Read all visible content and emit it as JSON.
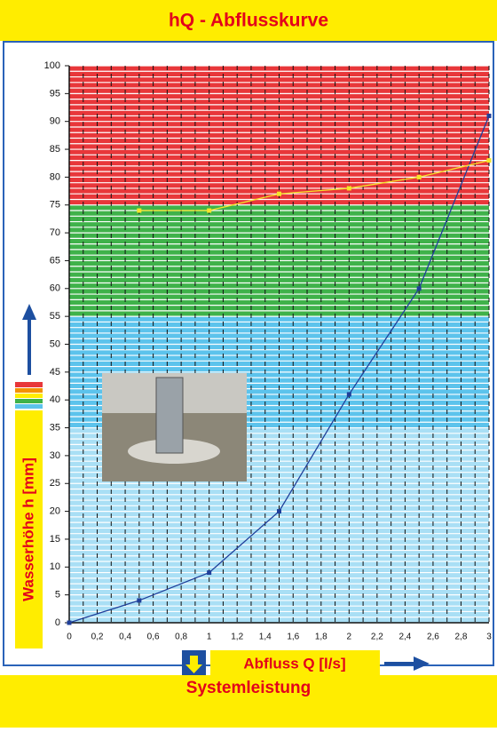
{
  "chart_data": {
    "type": "line",
    "title": "hQ - Abflusskurve",
    "caption": "Systemleistung",
    "x_label": "Abfluss Q [l/s]",
    "y_label": "Wasserhöhe h [mm]",
    "xlim": [
      0,
      3
    ],
    "ylim": [
      0,
      100
    ],
    "xticks": [
      0,
      {
        "value": 0.2,
        "label": "0,2"
      },
      {
        "value": 0.4,
        "label": "0,4"
      },
      {
        "value": 0.6,
        "label": "0,6"
      },
      {
        "value": 0.8,
        "label": "0,8"
      },
      1,
      {
        "value": 1.2,
        "label": "1,2"
      },
      {
        "value": 1.4,
        "label": "1,4"
      },
      {
        "value": 1.6,
        "label": "1,6"
      },
      {
        "value": 1.8,
        "label": "1,8"
      },
      2,
      {
        "value": 2.2,
        "label": "2,2"
      },
      {
        "value": 2.4,
        "label": "2,4"
      },
      {
        "value": 2.6,
        "label": "2,6"
      },
      {
        "value": 2.8,
        "label": "2,8"
      },
      3
    ],
    "yticks": [
      0,
      5,
      10,
      15,
      20,
      25,
      30,
      35,
      40,
      45,
      50,
      55,
      60,
      65,
      70,
      75,
      80,
      85,
      90,
      95,
      100
    ],
    "bands": [
      {
        "from": 75,
        "to": 100,
        "color": "#e8373a"
      },
      {
        "from": 55,
        "to": 75,
        "color": "#3fb24a"
      },
      {
        "from": 35,
        "to": 55,
        "color": "#5cc3ec"
      },
      {
        "from": 0,
        "to": 35,
        "color": "#a9dff5"
      }
    ],
    "series": [
      {
        "color": "#1f3f9a",
        "x": [
          0,
          0.5,
          1,
          1.5,
          2,
          2.5,
          3
        ],
        "values": [
          0,
          4,
          9,
          20,
          41,
          60,
          91
        ]
      },
      {
        "color": "#f5e52a",
        "x": [
          0.5,
          1,
          1.5,
          2,
          2.5,
          3
        ],
        "values": [
          74,
          74,
          77,
          78,
          80,
          83
        ]
      }
    ]
  }
}
